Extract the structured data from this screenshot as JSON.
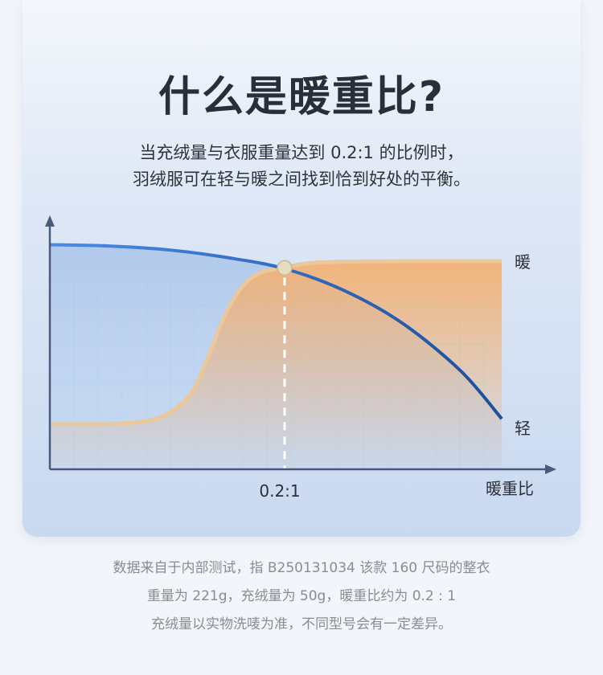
{
  "header": {
    "title": "什么是暖重比?",
    "subtitle_lines": [
      "当充绒量与衣服重量达到 0.2:1 的比例时，",
      "羽绒服可在轻与暖之间找到恰到好处的平衡。"
    ]
  },
  "chart_data": {
    "type": "line",
    "xlabel": "暖重比",
    "x_tick_labels": [
      "0.2:1"
    ],
    "x_ticks": [
      0.2
    ],
    "xlim": [
      0,
      0.4
    ],
    "ylim": [
      0,
      100
    ],
    "grid": true,
    "series": [
      {
        "name": "轻",
        "color": "#2f6fd0",
        "x": [
          0,
          0.05,
          0.1,
          0.15,
          0.2,
          0.25,
          0.3,
          0.35,
          0.385
        ],
        "y": [
          89,
          88.5,
          87,
          84,
          79.5,
          71,
          58,
          39,
          20
        ]
      },
      {
        "name": "暖",
        "color": "#e9b98a",
        "x": [
          0,
          0.05,
          0.08,
          0.1,
          0.12,
          0.135,
          0.15,
          0.165,
          0.18,
          0.2,
          0.23,
          0.3,
          0.385
        ],
        "y": [
          18,
          18,
          19,
          22,
          30,
          45,
          62,
          73,
          78,
          80,
          82,
          82.5,
          82.5
        ]
      }
    ],
    "annotations": [
      {
        "type": "vertical-dashed-line",
        "x": 0.2,
        "marker": "intersection-dot"
      }
    ]
  },
  "footer": {
    "lines": [
      "数据来自于内部测试，指 B250131034 该款 160 尺码的整衣",
      "重量为 221g，充绒量为 50g，暖重比约为 0.2 : 1",
      "充绒量以实物洗唛为准，不同型号会有一定差异。"
    ]
  }
}
